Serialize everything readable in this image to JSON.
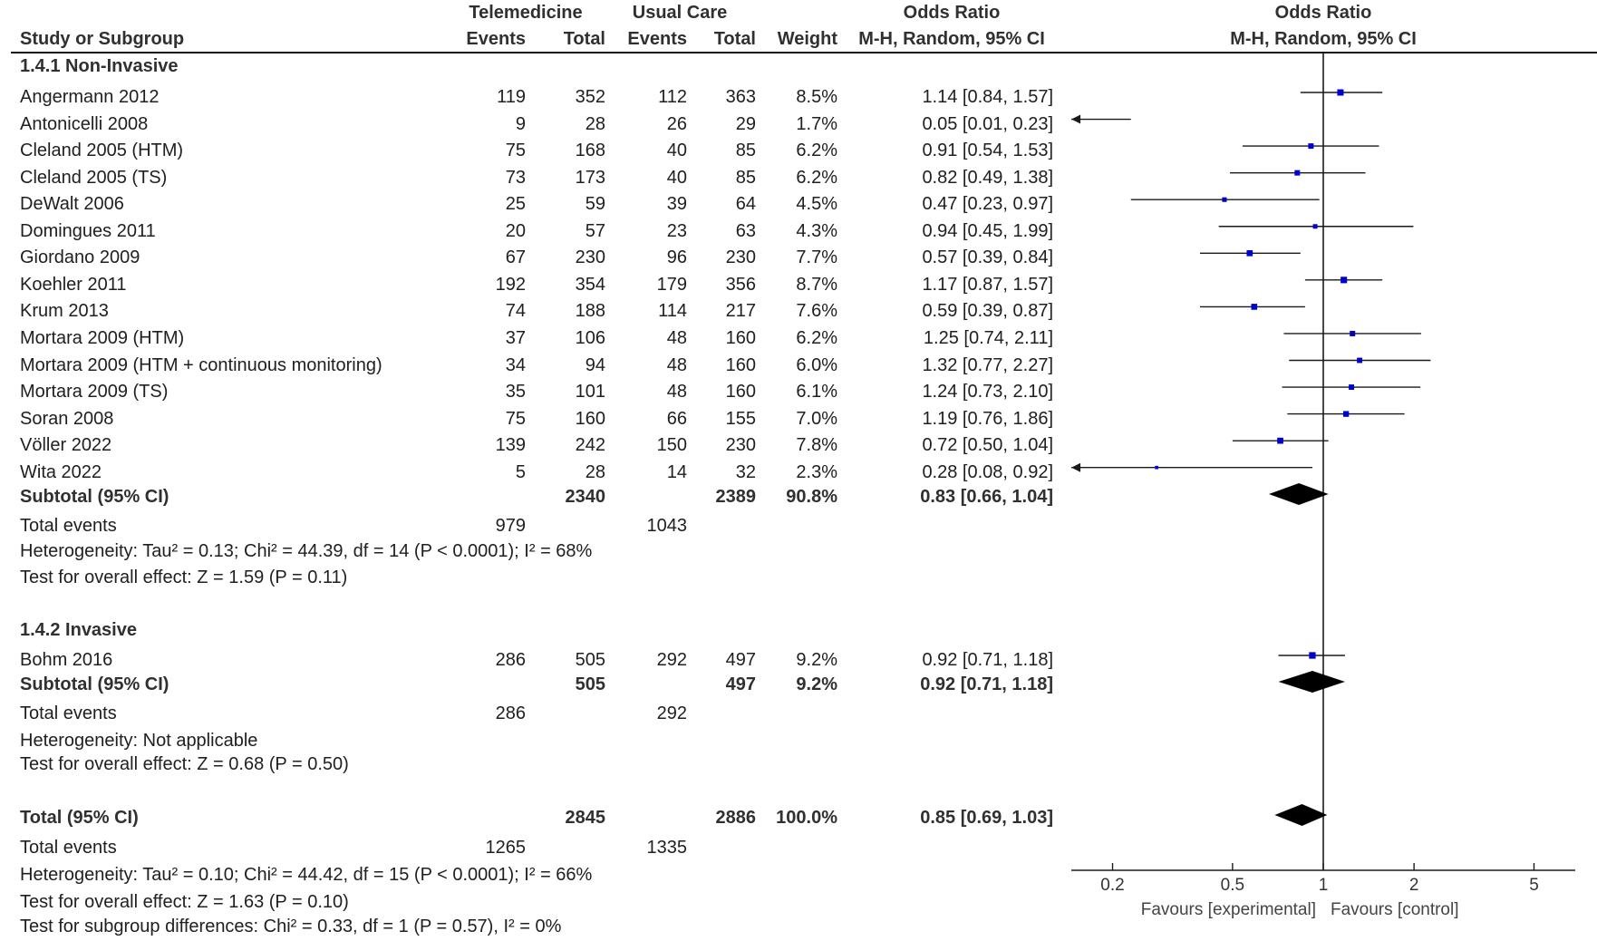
{
  "header": {
    "group1": "Telemedicine",
    "group2": "Usual Care",
    "col_study": "Study or Subgroup",
    "col_events1": "Events",
    "col_total1": "Total",
    "col_events2": "Events",
    "col_total2": "Total",
    "col_weight": "Weight",
    "col_or_title": "Odds Ratio",
    "col_or_method": "M-H, Random, 95% CI",
    "plot_title": "Odds Ratio",
    "plot_method": "M-H, Random, 95% CI"
  },
  "subgroups": [
    {
      "title": "1.4.1 Non-Invasive",
      "studies": [
        {
          "name": "Angermann 2012",
          "e1": "119",
          "n1": "352",
          "e2": "112",
          "n2": "363",
          "weight": "8.5%",
          "ci_text": "1.14 [0.84, 1.57]"
        },
        {
          "name": "Antonicelli 2008",
          "e1": "9",
          "n1": "28",
          "e2": "26",
          "n2": "29",
          "weight": "1.7%",
          "ci_text": "0.05 [0.01, 0.23]"
        },
        {
          "name": "Cleland 2005 (HTM)",
          "e1": "75",
          "n1": "168",
          "e2": "40",
          "n2": "85",
          "weight": "6.2%",
          "ci_text": "0.91 [0.54, 1.53]"
        },
        {
          "name": "Cleland 2005 (TS)",
          "e1": "73",
          "n1": "173",
          "e2": "40",
          "n2": "85",
          "weight": "6.2%",
          "ci_text": "0.82 [0.49, 1.38]"
        },
        {
          "name": "DeWalt 2006",
          "e1": "25",
          "n1": "59",
          "e2": "39",
          "n2": "64",
          "weight": "4.5%",
          "ci_text": "0.47 [0.23, 0.97]"
        },
        {
          "name": "Domingues 2011",
          "e1": "20",
          "n1": "57",
          "e2": "23",
          "n2": "63",
          "weight": "4.3%",
          "ci_text": "0.94 [0.45, 1.99]"
        },
        {
          "name": "Giordano 2009",
          "e1": "67",
          "n1": "230",
          "e2": "96",
          "n2": "230",
          "weight": "7.7%",
          "ci_text": "0.57 [0.39, 0.84]"
        },
        {
          "name": "Koehler 2011",
          "e1": "192",
          "n1": "354",
          "e2": "179",
          "n2": "356",
          "weight": "8.7%",
          "ci_text": "1.17 [0.87, 1.57]"
        },
        {
          "name": "Krum 2013",
          "e1": "74",
          "n1": "188",
          "e2": "114",
          "n2": "217",
          "weight": "7.6%",
          "ci_text": "0.59 [0.39, 0.87]"
        },
        {
          "name": "Mortara 2009 (HTM)",
          "e1": "37",
          "n1": "106",
          "e2": "48",
          "n2": "160",
          "weight": "6.2%",
          "ci_text": "1.25 [0.74, 2.11]"
        },
        {
          "name": "Mortara 2009 (HTM + continuous monitoring)",
          "e1": "34",
          "n1": "94",
          "e2": "48",
          "n2": "160",
          "weight": "6.0%",
          "ci_text": "1.32 [0.77, 2.27]"
        },
        {
          "name": "Mortara 2009 (TS)",
          "e1": "35",
          "n1": "101",
          "e2": "48",
          "n2": "160",
          "weight": "6.1%",
          "ci_text": "1.24 [0.73, 2.10]"
        },
        {
          "name": "Soran 2008",
          "e1": "75",
          "n1": "160",
          "e2": "66",
          "n2": "155",
          "weight": "7.0%",
          "ci_text": "1.19 [0.76, 1.86]"
        },
        {
          "name": "Völler 2022",
          "e1": "139",
          "n1": "242",
          "e2": "150",
          "n2": "230",
          "weight": "7.8%",
          "ci_text": "0.72 [0.50, 1.04]"
        },
        {
          "name": "Wita 2022",
          "e1": "5",
          "n1": "28",
          "e2": "14",
          "n2": "32",
          "weight": "2.3%",
          "ci_text": "0.28 [0.08, 0.92]"
        }
      ],
      "subtotal": {
        "label": "Subtotal (95% CI)",
        "n1": "2340",
        "n2": "2389",
        "weight": "90.8%",
        "ci_text": "0.83 [0.66, 1.04]"
      },
      "total_events": {
        "label": "Total events",
        "e1": "979",
        "e2": "1043"
      },
      "heterogeneity": "Heterogeneity: Tau² = 0.13; Chi² = 44.39, df = 14 (P < 0.0001); I² = 68%",
      "overall_effect": "Test for overall effect: Z = 1.59 (P = 0.11)"
    },
    {
      "title": "1.4.2 Invasive",
      "studies": [
        {
          "name": "Bohm 2016",
          "e1": "286",
          "n1": "505",
          "e2": "292",
          "n2": "497",
          "weight": "9.2%",
          "ci_text": "0.92 [0.71, 1.18]"
        }
      ],
      "subtotal": {
        "label": "Subtotal (95% CI)",
        "n1": "505",
        "n2": "497",
        "weight": "9.2%",
        "ci_text": "0.92 [0.71, 1.18]"
      },
      "total_events": {
        "label": "Total events",
        "e1": "286",
        "e2": "292"
      },
      "heterogeneity": "Heterogeneity: Not applicable",
      "overall_effect": "Test for overall effect: Z = 0.68 (P = 0.50)"
    }
  ],
  "total": {
    "label": "Total (95% CI)",
    "n1": "2845",
    "n2": "2886",
    "weight": "100.0%",
    "ci_text": "0.85 [0.69, 1.03]",
    "total_events": {
      "label": "Total events",
      "e1": "1265",
      "e2": "1335"
    },
    "heterogeneity": "Heterogeneity: Tau² = 0.10; Chi² = 44.42, df = 15 (P < 0.0001); I² = 66%",
    "overall_effect": "Test for overall effect: Z = 1.63 (P = 0.10)",
    "subgroup_diff": "Test for subgroup differences: Chi² = 0.33, df = 1 (P = 0.57), I² = 0%"
  },
  "axis": {
    "ticks": [
      "0.2",
      "0.5",
      "1",
      "2",
      "5"
    ],
    "favours_left": "Favours [experimental]",
    "favours_right": "Favours [control]"
  },
  "colors": {
    "marker": "#0000cc",
    "line": "#1a1a1a",
    "diamond": "#000000"
  },
  "chart_data": {
    "type": "forest",
    "title": "Odds Ratio",
    "xlabel": "M-H, Random, 95% CI",
    "scale": "log",
    "xlim": [
      0.146,
      6.85
    ],
    "ticks": [
      0.2,
      0.5,
      1,
      2,
      5
    ],
    "null_line": 1,
    "series": [
      {
        "name": "Angermann 2012",
        "or": 1.14,
        "lo": 0.84,
        "hi": 1.57,
        "weight": 8.5
      },
      {
        "name": "Antonicelli 2008",
        "or": 0.05,
        "lo": 0.01,
        "hi": 0.23,
        "weight": 1.7
      },
      {
        "name": "Cleland 2005 (HTM)",
        "or": 0.91,
        "lo": 0.54,
        "hi": 1.53,
        "weight": 6.2
      },
      {
        "name": "Cleland 2005 (TS)",
        "or": 0.82,
        "lo": 0.49,
        "hi": 1.38,
        "weight": 6.2
      },
      {
        "name": "DeWalt 2006",
        "or": 0.47,
        "lo": 0.23,
        "hi": 0.97,
        "weight": 4.5
      },
      {
        "name": "Domingues 2011",
        "or": 0.94,
        "lo": 0.45,
        "hi": 1.99,
        "weight": 4.3
      },
      {
        "name": "Giordano 2009",
        "or": 0.57,
        "lo": 0.39,
        "hi": 0.84,
        "weight": 7.7
      },
      {
        "name": "Koehler 2011",
        "or": 1.17,
        "lo": 0.87,
        "hi": 1.57,
        "weight": 8.7
      },
      {
        "name": "Krum 2013",
        "or": 0.59,
        "lo": 0.39,
        "hi": 0.87,
        "weight": 7.6
      },
      {
        "name": "Mortara 2009 (HTM)",
        "or": 1.25,
        "lo": 0.74,
        "hi": 2.11,
        "weight": 6.2
      },
      {
        "name": "Mortara 2009 (HTM + continuous monitoring)",
        "or": 1.32,
        "lo": 0.77,
        "hi": 2.27,
        "weight": 6.0
      },
      {
        "name": "Mortara 2009 (TS)",
        "or": 1.24,
        "lo": 0.73,
        "hi": 2.1,
        "weight": 6.1
      },
      {
        "name": "Soran 2008",
        "or": 1.19,
        "lo": 0.76,
        "hi": 1.86,
        "weight": 7.0
      },
      {
        "name": "Völler 2022",
        "or": 0.72,
        "lo": 0.5,
        "hi": 1.04,
        "weight": 7.8
      },
      {
        "name": "Wita 2022",
        "or": 0.28,
        "lo": 0.08,
        "hi": 0.92,
        "weight": 2.3
      },
      {
        "name": "Bohm 2016",
        "or": 0.92,
        "lo": 0.71,
        "hi": 1.18,
        "weight": 9.2
      }
    ],
    "summaries": [
      {
        "name": "Subtotal 1.4.1 Non-Invasive",
        "or": 0.83,
        "lo": 0.66,
        "hi": 1.04
      },
      {
        "name": "Subtotal 1.4.2 Invasive",
        "or": 0.92,
        "lo": 0.71,
        "hi": 1.18
      },
      {
        "name": "Total",
        "or": 0.85,
        "lo": 0.69,
        "hi": 1.03
      }
    ]
  }
}
